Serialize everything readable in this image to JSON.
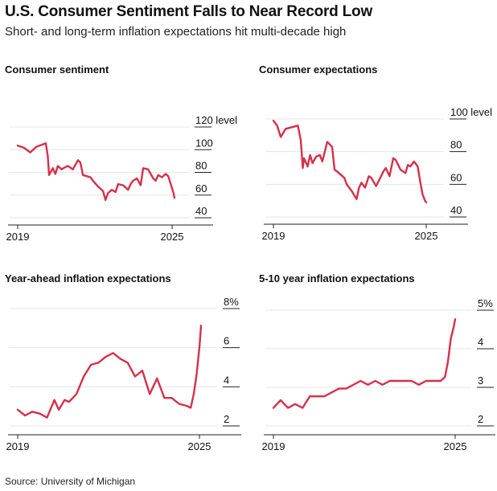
{
  "header": {
    "title": "U.S. Consumer Sentiment Falls to Near Record Low",
    "subtitle": "Short- and long-term inflation expectations hit multi-decade high"
  },
  "source": "Source: University of Michigan",
  "colors": {
    "line": "#d6304a",
    "axis": "#222222",
    "grid": "#e6e6e6"
  },
  "chart_data": [
    {
      "type": "line",
      "title": "Consumer sentiment",
      "unit_label": "level",
      "x_tick_labels": [
        "2019",
        "2025"
      ],
      "ylim": [
        40,
        120
      ],
      "y_ticks": [
        40,
        60,
        80,
        100,
        120
      ],
      "x": [
        2019.0,
        2019.25,
        2019.5,
        2019.75,
        2020.0,
        2020.12,
        2020.2,
        2020.25,
        2020.4,
        2020.5,
        2020.6,
        2020.75,
        2020.9,
        2021.0,
        2021.2,
        2021.4,
        2021.5,
        2021.6,
        2021.75,
        2021.9,
        2022.0,
        2022.2,
        2022.4,
        2022.5,
        2022.6,
        2022.75,
        2022.9,
        2023.0,
        2023.2,
        2023.4,
        2023.5,
        2023.6,
        2023.75,
        2023.9,
        2024.0,
        2024.2,
        2024.4,
        2024.5,
        2024.6,
        2024.75,
        2024.9,
        2025.0,
        2025.1,
        2025.2,
        2025.25
      ],
      "series": [
        {
          "values": [
            98,
            96,
            92,
            97,
            99,
            100,
            89,
            72,
            78,
            73,
            80,
            77,
            79,
            80,
            77,
            85,
            83,
            72,
            71,
            70,
            67,
            62,
            58,
            50,
            56,
            59,
            57,
            64,
            63,
            59,
            64,
            67,
            69,
            63,
            78,
            77,
            69,
            67,
            72,
            70,
            73,
            71,
            64,
            57,
            52
          ]
        }
      ]
    },
    {
      "type": "line",
      "title": "Consumer expectations",
      "unit_label": "level",
      "x_tick_labels": [
        "2019",
        "2025"
      ],
      "ylim": [
        40,
        100
      ],
      "y_ticks": [
        40,
        60,
        80,
        100
      ],
      "x": [
        2019.0,
        2019.15,
        2019.3,
        2019.5,
        2019.75,
        2020.0,
        2020.12,
        2020.2,
        2020.25,
        2020.4,
        2020.5,
        2020.6,
        2020.75,
        2020.9,
        2021.0,
        2021.2,
        2021.4,
        2021.5,
        2021.6,
        2021.75,
        2021.9,
        2022.0,
        2022.2,
        2022.4,
        2022.5,
        2022.6,
        2022.75,
        2022.9,
        2023.0,
        2023.2,
        2023.4,
        2023.5,
        2023.6,
        2023.75,
        2023.9,
        2024.0,
        2024.2,
        2024.4,
        2024.5,
        2024.6,
        2024.75,
        2024.9,
        2025.0,
        2025.1,
        2025.2,
        2025.25
      ],
      "series": [
        {
          "values": [
            95,
            92,
            85,
            90,
            91,
            92,
            83,
            66,
            72,
            67,
            74,
            69,
            73,
            74,
            70,
            82,
            79,
            65,
            64,
            62,
            60,
            56,
            52,
            47,
            54,
            57,
            54,
            61,
            60,
            55,
            61,
            64,
            66,
            61,
            72,
            71,
            65,
            63,
            68,
            67,
            70,
            67,
            58,
            50,
            46,
            45
          ]
        }
      ]
    },
    {
      "type": "line",
      "title": "Year-ahead inflation expectations",
      "unit_label": "%",
      "x_tick_labels": [
        "2019",
        "2025"
      ],
      "ylim": [
        2,
        8
      ],
      "y_ticks": [
        2,
        4,
        6,
        8
      ],
      "x": [
        2019.0,
        2019.25,
        2019.5,
        2019.75,
        2020.0,
        2020.25,
        2020.4,
        2020.6,
        2020.75,
        2021.0,
        2021.25,
        2021.5,
        2021.75,
        2022.0,
        2022.25,
        2022.5,
        2022.75,
        2023.0,
        2023.25,
        2023.5,
        2023.75,
        2024.0,
        2024.25,
        2024.5,
        2024.75,
        2024.9,
        2025.0,
        2025.1,
        2025.2,
        2025.25
      ],
      "series": [
        {
          "values": [
            2.5,
            2.2,
            2.4,
            2.3,
            2.1,
            3.0,
            2.5,
            3.0,
            2.9,
            3.3,
            4.2,
            4.8,
            4.9,
            5.2,
            5.4,
            5.1,
            4.9,
            4.2,
            4.5,
            3.3,
            4.1,
            3.1,
            3.1,
            2.8,
            2.7,
            2.6,
            3.3,
            4.3,
            5.8,
            6.8
          ]
        }
      ]
    },
    {
      "type": "line",
      "title": "5-10 year inflation expectations",
      "unit_label": "%",
      "x_tick_labels": [
        "2019",
        "2025"
      ],
      "ylim": [
        2,
        5
      ],
      "y_ticks": [
        2,
        3,
        4,
        5
      ],
      "x": [
        2019.0,
        2019.25,
        2019.5,
        2019.75,
        2020.0,
        2020.25,
        2020.5,
        2020.75,
        2021.0,
        2021.25,
        2021.5,
        2021.75,
        2022.0,
        2022.25,
        2022.5,
        2022.75,
        2023.0,
        2023.25,
        2023.5,
        2023.75,
        2024.0,
        2024.25,
        2024.5,
        2024.75,
        2024.9,
        2025.0,
        2025.1,
        2025.2,
        2025.25
      ],
      "series": [
        {
          "values": [
            2.3,
            2.5,
            2.3,
            2.4,
            2.3,
            2.6,
            2.6,
            2.6,
            2.7,
            2.8,
            2.8,
            2.9,
            3.0,
            2.9,
            3.0,
            2.9,
            3.0,
            3.0,
            3.0,
            3.0,
            2.9,
            3.0,
            3.0,
            3.0,
            3.1,
            3.5,
            4.1,
            4.4,
            4.6
          ]
        }
      ]
    }
  ]
}
